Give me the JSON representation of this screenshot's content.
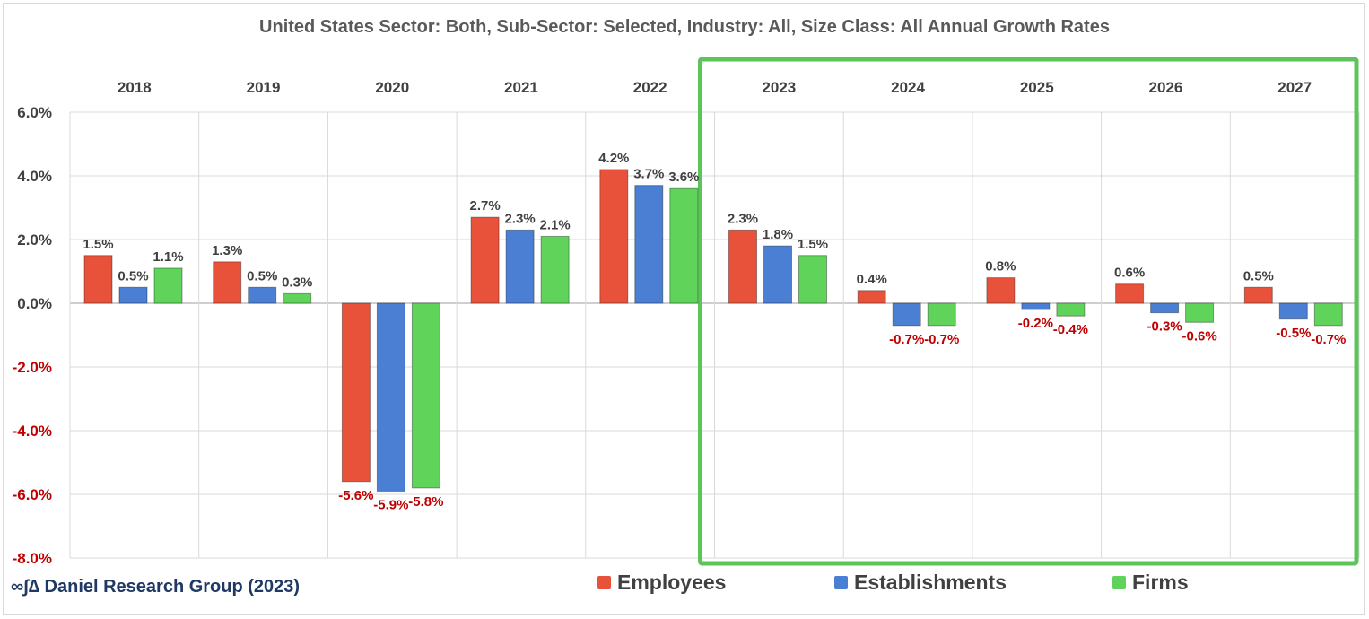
{
  "chart_data": {
    "type": "bar",
    "title": "United States Sector: Both, Sub-Sector: Selected, Industry: All, Size Class: All Annual Growth Rates",
    "categories": [
      "2018",
      "2019",
      "2020",
      "2021",
      "2022",
      "2023",
      "2024",
      "2025",
      "2026",
      "2027"
    ],
    "series": [
      {
        "name": "Employees",
        "color": "#e8523a",
        "values": [
          1.5,
          1.3,
          -5.6,
          2.7,
          4.2,
          2.3,
          0.4,
          0.8,
          0.6,
          0.5
        ]
      },
      {
        "name": "Establishments",
        "color": "#4a7fd4",
        "values": [
          0.5,
          0.5,
          -5.9,
          2.3,
          3.7,
          1.8,
          -0.7,
          -0.2,
          -0.3,
          -0.5
        ]
      },
      {
        "name": "Firms",
        "color": "#5fd35a",
        "values": [
          1.1,
          0.3,
          -5.8,
          2.1,
          3.6,
          1.5,
          -0.7,
          -0.4,
          -0.6,
          -0.7
        ]
      }
    ],
    "data_labels": [
      [
        "1.5%",
        "0.5%",
        "1.1%"
      ],
      [
        "1.3%",
        "0.5%",
        "0.3%"
      ],
      [
        "-5.6%",
        "-5.9%",
        "-5.8%"
      ],
      [
        "2.7%",
        "2.3%",
        "2.1%"
      ],
      [
        "4.2%",
        "3.7%",
        "3.6%"
      ],
      [
        "2.3%",
        "1.8%",
        "1.5%"
      ],
      [
        "0.4%",
        "-0.7%",
        "-0.7%"
      ],
      [
        "0.8%",
        "-0.2%",
        "-0.4%"
      ],
      [
        "0.6%",
        "-0.3%",
        "-0.6%"
      ],
      [
        "0.5%",
        "-0.5%",
        "-0.7%"
      ]
    ],
    "ylim": [
      -8,
      6
    ],
    "yticks": [
      "-8.0%",
      "-6.0%",
      "-4.0%",
      "-2.0%",
      "0.0%",
      "2.0%",
      "4.0%",
      "6.0%"
    ],
    "ytick_values": [
      -8,
      -6,
      -4,
      -2,
      0,
      2,
      4,
      6
    ],
    "positive_color": "#404040",
    "negative_color": "#c00000",
    "highlight": {
      "from": "2023",
      "to": "2027",
      "color": "#5cc45a"
    },
    "grid": true,
    "legend": "bottom"
  },
  "brand": "∞∫∆ Daniel Research Group (2023)"
}
